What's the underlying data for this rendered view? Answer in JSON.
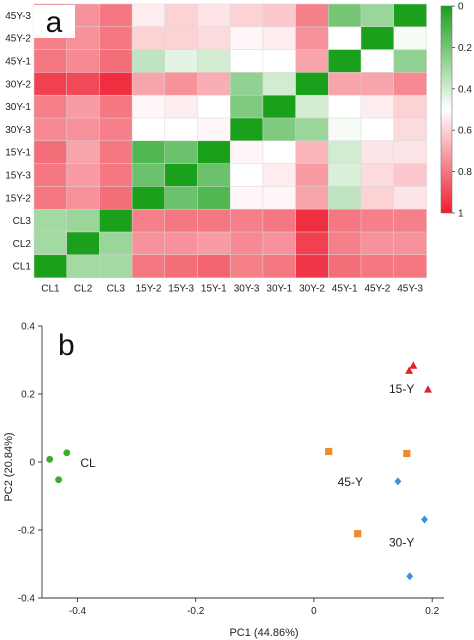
{
  "chart_data": [
    {
      "type": "heatmap",
      "panel_label": "a",
      "rows": [
        "45Y-3",
        "45Y-2",
        "45Y-1",
        "30Y-2",
        "30Y-1",
        "30Y-3",
        "15Y-1",
        "15Y-3",
        "15Y-2",
        "CL3",
        "CL2",
        "CL1"
      ],
      "columns": [
        "CL1",
        "CL2",
        "CL3",
        "15Y-2",
        "15Y-3",
        "15Y-1",
        "30Y-3",
        "30Y-1",
        "30Y-2",
        "45Y-1",
        "45Y-2",
        "45Y-3"
      ],
      "values": [
        [
          0.78,
          0.74,
          0.8,
          0.54,
          0.6,
          0.56,
          0.6,
          0.62,
          0.78,
          0.2,
          0.28,
          0.0
        ],
        [
          0.78,
          0.74,
          0.8,
          0.6,
          0.6,
          0.58,
          0.52,
          0.54,
          0.74,
          0.5,
          0.0,
          0.48
        ],
        [
          0.8,
          0.76,
          0.82,
          0.36,
          0.44,
          0.4,
          0.5,
          0.5,
          0.7,
          0.0,
          0.5,
          0.26
        ],
        [
          0.92,
          0.9,
          0.96,
          0.7,
          0.74,
          0.68,
          0.26,
          0.4,
          0.0,
          0.7,
          0.7,
          0.76
        ],
        [
          0.78,
          0.72,
          0.8,
          0.52,
          0.54,
          0.5,
          0.22,
          0.0,
          0.4,
          0.5,
          0.54,
          0.6
        ],
        [
          0.76,
          0.74,
          0.78,
          0.5,
          0.5,
          0.52,
          0.0,
          0.22,
          0.28,
          0.48,
          0.5,
          0.58
        ],
        [
          0.82,
          0.7,
          0.8,
          0.12,
          0.18,
          0.0,
          0.52,
          0.5,
          0.66,
          0.4,
          0.56,
          0.56
        ],
        [
          0.8,
          0.72,
          0.8,
          0.18,
          0.0,
          0.18,
          0.5,
          0.54,
          0.72,
          0.42,
          0.58,
          0.62
        ],
        [
          0.8,
          0.74,
          0.82,
          0.0,
          0.18,
          0.12,
          0.52,
          0.52,
          0.7,
          0.36,
          0.6,
          0.56
        ],
        [
          0.3,
          0.28,
          0.0,
          0.78,
          0.8,
          0.8,
          0.78,
          0.8,
          0.96,
          0.8,
          0.78,
          0.78
        ],
        [
          0.3,
          0.0,
          0.28,
          0.74,
          0.74,
          0.72,
          0.76,
          0.74,
          0.92,
          0.78,
          0.74,
          0.74
        ],
        [
          0.0,
          0.3,
          0.3,
          0.8,
          0.82,
          0.84,
          0.78,
          0.8,
          0.94,
          0.82,
          0.8,
          0.8
        ]
      ],
      "colorbar": {
        "range": [
          0,
          1
        ],
        "ticks": [
          "0",
          "0.2",
          "0.4",
          "0.6",
          "0.8",
          "1"
        ]
      },
      "colors": {
        "low": "#1aa01a",
        "mid": "#ffffff",
        "high": "#ee1c2e"
      }
    },
    {
      "type": "scatter",
      "panel_label": "b",
      "xlabel": "PC1 (44.86%)",
      "ylabel": "PC2 (20.84%)",
      "xlim": [
        -0.46,
        0.22
      ],
      "ylim": [
        -0.4,
        0.4
      ],
      "xticks": [
        "-0.4",
        "-0.2",
        "0",
        "0.2"
      ],
      "yticks": [
        "0.4",
        "0.2",
        "0",
        "-0.2",
        "-0.4"
      ],
      "series": [
        {
          "name": "CL",
          "marker": "circle",
          "color": "#3aae2a",
          "x": [
            -0.447,
            -0.418,
            -0.432
          ],
          "y": [
            0.008,
            0.027,
            -0.052
          ]
        },
        {
          "name": "15-Y",
          "marker": "triangle",
          "color": "#e0242e",
          "x": [
            0.161,
            0.168,
            0.193
          ],
          "y": [
            0.268,
            0.283,
            0.213
          ]
        },
        {
          "name": "45-Y",
          "marker": "square",
          "color": "#ef8c2a",
          "x": [
            0.025,
            0.157,
            0.074
          ],
          "y": [
            0.031,
            0.025,
            -0.211
          ]
        },
        {
          "name": "30-Y",
          "marker": "diamond",
          "color": "#3a8fe3",
          "x": [
            0.142,
            0.187,
            0.162
          ],
          "y": [
            -0.057,
            -0.169,
            -0.336
          ]
        }
      ]
    }
  ]
}
